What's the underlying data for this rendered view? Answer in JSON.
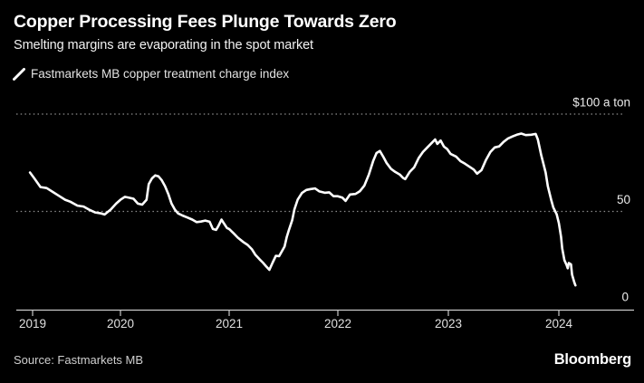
{
  "header": {
    "title": "Copper Processing Fees Plunge Towards Zero",
    "subtitle": "Smelting margins are evaporating in the spot market"
  },
  "legend": {
    "series_label": "Fastmarkets MB copper treatment charge index"
  },
  "footer": {
    "source": "Source: Fastmarkets MB",
    "brand": "Bloomberg"
  },
  "colors": {
    "background": "#000000",
    "line": "#ffffff",
    "grid": "#8c8c8c",
    "axis": "#c9c9c9",
    "text": "#ffffff",
    "muted_text": "#cfcfcf"
  },
  "chart_data": {
    "type": "line",
    "title": "Copper Processing Fees Plunge Towards Zero",
    "subtitle": "Smelting margins are evaporating in the spot market",
    "xlabel": "",
    "ylabel": "$ a ton",
    "unit_label": "$100 a ton",
    "ylim": [
      0,
      100
    ],
    "x_range_years": [
      2018.8,
      2024.7
    ],
    "grid": "horizontal-dotted",
    "legend_position": "top-left",
    "x_ticks": [
      2019,
      2020,
      2021,
      2022,
      2023,
      2024
    ],
    "y_gridlines": [
      100,
      50
    ],
    "y_ticks": [
      {
        "value": 100,
        "label": "$100 a ton"
      },
      {
        "value": 50,
        "label": "50"
      },
      {
        "value": 0,
        "label": "0"
      }
    ],
    "series": [
      {
        "name": "Fastmarkets MB copper treatment charge index",
        "color": "#ffffff",
        "points": [
          [
            2018.97,
            70
          ],
          [
            2019.02,
            67
          ],
          [
            2019.09,
            62.5
          ],
          [
            2019.16,
            62
          ],
          [
            2019.23,
            60
          ],
          [
            2019.3,
            58
          ],
          [
            2019.37,
            56
          ],
          [
            2019.43,
            55
          ],
          [
            2019.51,
            53
          ],
          [
            2019.58,
            52.5
          ],
          [
            2019.64,
            51
          ],
          [
            2019.71,
            49.5
          ],
          [
            2019.78,
            49
          ],
          [
            2019.82,
            48.4
          ],
          [
            2019.89,
            51
          ],
          [
            2019.95,
            54
          ],
          [
            2020,
            56
          ],
          [
            2020.04,
            57.5
          ],
          [
            2020.08,
            57
          ],
          [
            2020.12,
            56.5
          ],
          [
            2020.16,
            54
          ],
          [
            2020.2,
            53.5
          ],
          [
            2020.24,
            56
          ],
          [
            2020.26,
            64
          ],
          [
            2020.29,
            67
          ],
          [
            2020.32,
            68.5
          ],
          [
            2020.35,
            68
          ],
          [
            2020.38,
            66
          ],
          [
            2020.41,
            63
          ],
          [
            2020.44,
            59
          ],
          [
            2020.47,
            54
          ],
          [
            2020.5,
            51
          ],
          [
            2020.53,
            49
          ],
          [
            2020.57,
            47.9
          ],
          [
            2020.62,
            46.8
          ],
          [
            2020.66,
            45.8
          ],
          [
            2020.7,
            44.5
          ],
          [
            2020.74,
            44.8
          ],
          [
            2020.78,
            45.3
          ],
          [
            2020.82,
            44.7
          ],
          [
            2020.85,
            41
          ],
          [
            2020.88,
            40.5
          ],
          [
            2020.9,
            42.4
          ],
          [
            2020.93,
            45.8
          ],
          [
            2020.95,
            44
          ],
          [
            2020.98,
            41.5
          ],
          [
            2021,
            41
          ],
          [
            2021.04,
            38.8
          ],
          [
            2021.08,
            36.5
          ],
          [
            2021.13,
            34.3
          ],
          [
            2021.17,
            32.8
          ],
          [
            2021.21,
            30.5
          ],
          [
            2021.24,
            27.8
          ],
          [
            2021.28,
            25.4
          ],
          [
            2021.31,
            23.7
          ],
          [
            2021.34,
            21.8
          ],
          [
            2021.37,
            20
          ],
          [
            2021.4,
            23.7
          ],
          [
            2021.43,
            27.2
          ],
          [
            2021.46,
            27
          ],
          [
            2021.48,
            29
          ],
          [
            2021.51,
            32
          ],
          [
            2021.53,
            36.9
          ],
          [
            2021.55,
            40.5
          ],
          [
            2021.58,
            45.5
          ],
          [
            2021.6,
            51
          ],
          [
            2021.63,
            56
          ],
          [
            2021.67,
            59.5
          ],
          [
            2021.71,
            61
          ],
          [
            2021.75,
            61.5
          ],
          [
            2021.79,
            61.8
          ],
          [
            2021.83,
            60.3
          ],
          [
            2021.88,
            59.6
          ],
          [
            2021.92,
            59.8
          ],
          [
            2021.96,
            57.8
          ],
          [
            2022,
            57.8
          ],
          [
            2022.04,
            57.1
          ],
          [
            2022.07,
            55.4
          ],
          [
            2022.11,
            58.7
          ],
          [
            2022.16,
            59
          ],
          [
            2022.2,
            60.4
          ],
          [
            2022.24,
            63.3
          ],
          [
            2022.28,
            68.9
          ],
          [
            2022.32,
            75.9
          ],
          [
            2022.35,
            80
          ],
          [
            2022.38,
            81
          ],
          [
            2022.41,
            78.2
          ],
          [
            2022.44,
            75
          ],
          [
            2022.48,
            71.9
          ],
          [
            2022.52,
            70.3
          ],
          [
            2022.56,
            69
          ],
          [
            2022.59,
            67.2
          ],
          [
            2022.61,
            66.6
          ],
          [
            2022.65,
            70.3
          ],
          [
            2022.69,
            72.6
          ],
          [
            2022.73,
            77.3
          ],
          [
            2022.77,
            80.5
          ],
          [
            2022.81,
            82.9
          ],
          [
            2022.85,
            85.2
          ],
          [
            2022.88,
            87
          ],
          [
            2022.9,
            84.7
          ],
          [
            2022.93,
            86.4
          ],
          [
            2022.96,
            83.3
          ],
          [
            2022.99,
            82
          ],
          [
            2023.02,
            79.6
          ],
          [
            2023.07,
            78.2
          ],
          [
            2023.11,
            75.8
          ],
          [
            2023.15,
            74.5
          ],
          [
            2023.19,
            73
          ],
          [
            2023.23,
            71.5
          ],
          [
            2023.26,
            69.4
          ],
          [
            2023.3,
            71.2
          ],
          [
            2023.34,
            76.4
          ],
          [
            2023.38,
            80.5
          ],
          [
            2023.42,
            82.9
          ],
          [
            2023.46,
            83.4
          ],
          [
            2023.5,
            85.7
          ],
          [
            2023.54,
            87.5
          ],
          [
            2023.58,
            88.5
          ],
          [
            2023.62,
            89.4
          ],
          [
            2023.66,
            90
          ],
          [
            2023.7,
            89.2
          ],
          [
            2023.75,
            89.4
          ],
          [
            2023.79,
            89.8
          ],
          [
            2023.81,
            87
          ],
          [
            2023.84,
            79
          ],
          [
            2023.88,
            70
          ],
          [
            2023.9,
            63
          ],
          [
            2023.93,
            56
          ],
          [
            2023.95,
            52
          ],
          [
            2023.98,
            48.5
          ],
          [
            2024,
            44
          ],
          [
            2024.02,
            37
          ],
          [
            2024.03,
            31
          ],
          [
            2024.05,
            25
          ],
          [
            2024.07,
            22.5
          ],
          [
            2024.08,
            20.8
          ],
          [
            2024.09,
            23.5
          ],
          [
            2024.11,
            22.8
          ],
          [
            2024.12,
            17.5
          ],
          [
            2024.14,
            13.5
          ],
          [
            2024.15,
            12
          ]
        ]
      }
    ]
  }
}
